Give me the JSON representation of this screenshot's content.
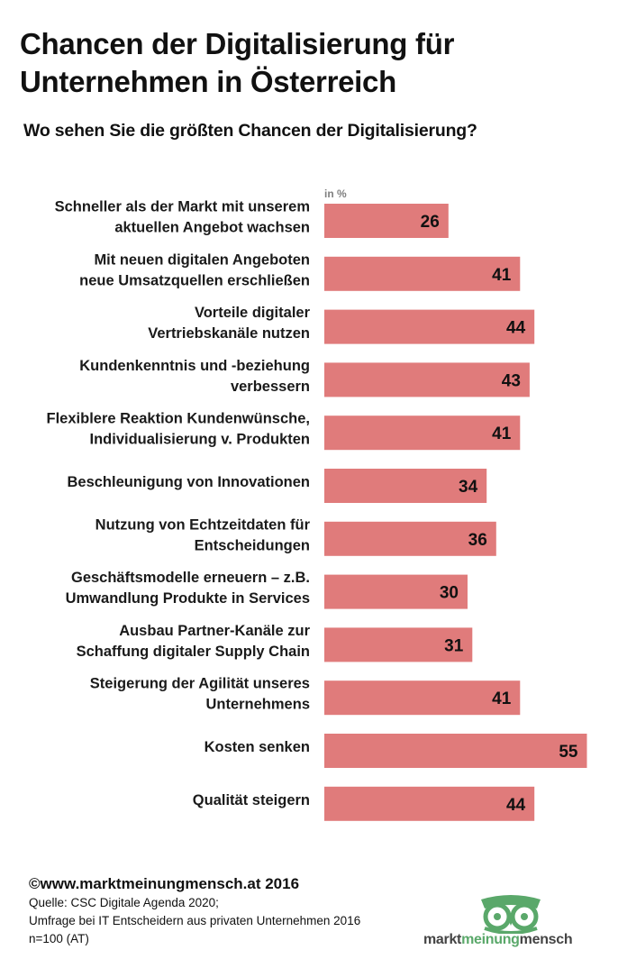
{
  "title_lines": [
    "Chancen der Digitalisierung für",
    "Unternehmen in Österreich"
  ],
  "subtitle": "Wo sehen Sie die größten Chancen der Digitalisierung?",
  "unit_label": "in %",
  "bar_color": "#e07b7b",
  "chart_data": {
    "type": "bar",
    "orientation": "horizontal",
    "title": "Chancen der Digitalisierung für Unternehmen in Österreich",
    "subtitle": "Wo sehen Sie die größten Chancen der Digitalisierung?",
    "unit": "in %",
    "xlim": [
      0,
      55
    ],
    "categories": [
      [
        "Schneller als der Markt mit unserem",
        "aktuellen Angebot wachsen"
      ],
      [
        "Mit neuen digitalen Angeboten",
        "neue Umsatzquellen erschließen"
      ],
      [
        "Vorteile digitaler",
        "Vertriebskanäle nutzen"
      ],
      [
        "Kundenkenntnis und -beziehung",
        "verbessern"
      ],
      [
        "Flexiblere Reaktion Kundenwünsche,",
        "Individualisierung v. Produkten"
      ],
      [
        "Beschleunigung von Innovationen"
      ],
      [
        "Nutzung von Echtzeitdaten für",
        "Entscheidungen"
      ],
      [
        "Geschäftsmodelle erneuern – z.B.",
        "Umwandlung Produkte in Services"
      ],
      [
        "Ausbau Partner-Kanäle zur",
        "Schaffung digitaler Supply Chain"
      ],
      [
        "Steigerung der Agilität unseres",
        "Unternehmens"
      ],
      [
        "Kosten senken"
      ],
      [
        "Qualität steigern"
      ]
    ],
    "values": [
      26,
      41,
      44,
      43,
      41,
      34,
      36,
      30,
      31,
      41,
      55,
      44
    ]
  },
  "footer": {
    "copyright": "©www.marktmeinungmensch.at 2016",
    "source_lines": [
      "Quelle: CSC Digitale Agenda 2020;",
      "Umfrage bei IT Entscheidern aus privaten Unternehmen 2016",
      "n=100 (AT)"
    ]
  },
  "logo": {
    "word1": "markt",
    "word2": "meinung",
    "word3": "mensch",
    "color_primary": "#5aa86a",
    "color_dark": "#444444"
  }
}
